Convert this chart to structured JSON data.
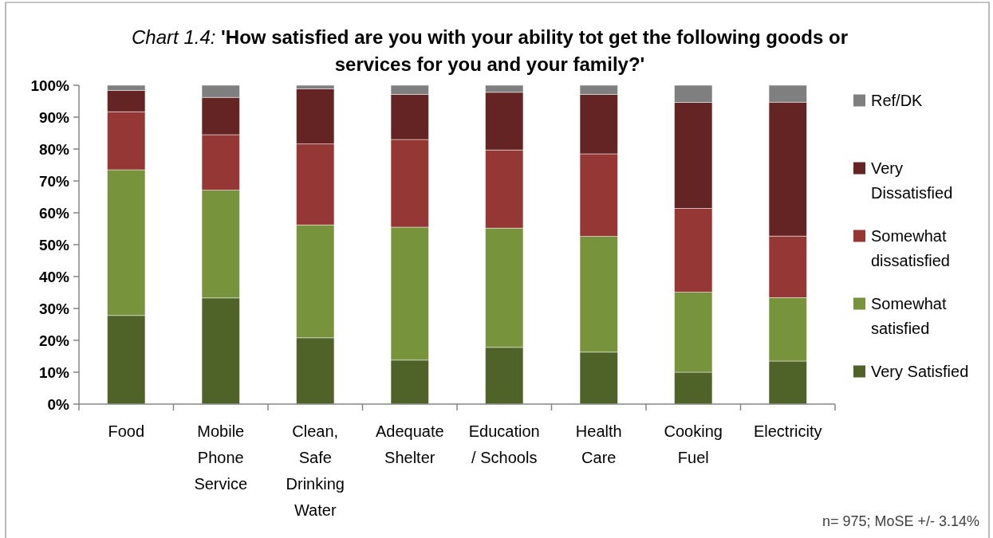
{
  "chart_data": {
    "type": "bar",
    "stacked": true,
    "title": "Chart 1.4: 'How satisfied are you with your ability tot get the following goods or services for you and your family?'",
    "categories": [
      "Food",
      "Mobile Phone Service",
      "Clean, Safe Drinking Water",
      "Adequate Shelter",
      "Education / Schools",
      "Health Care",
      "Cooking Fuel",
      "Electricity"
    ],
    "series": [
      {
        "name": "Very Satisfied",
        "color": "#4f6228",
        "values": [
          27.8,
          33.3,
          20.8,
          13.8,
          17.8,
          16.3,
          10.0,
          13.5
        ]
      },
      {
        "name": "Somewhat satisfied",
        "color": "#77933c",
        "values": [
          45.7,
          33.8,
          35.4,
          41.7,
          37.4,
          36.3,
          25.1,
          19.9
        ]
      },
      {
        "name": "Somewhat dissatisfied",
        "color": "#953735",
        "values": [
          18.2,
          17.4,
          25.4,
          27.5,
          24.5,
          25.9,
          26.3,
          19.3
        ]
      },
      {
        "name": "Very Dissatisfied",
        "color": "#632423",
        "values": [
          6.7,
          11.7,
          17.3,
          14.1,
          18.1,
          18.6,
          33.2,
          42.0
        ]
      },
      {
        "name": "Ref/DK",
        "color": "#7f7f7f",
        "values": [
          1.6,
          3.8,
          1.1,
          2.9,
          2.2,
          2.9,
          5.4,
          5.3
        ]
      }
    ],
    "ylim": [
      0,
      100
    ],
    "yticks": [
      {
        "value": 0,
        "label": "0%"
      },
      {
        "value": 10,
        "label": "10%"
      },
      {
        "value": 20,
        "label": "20%"
      },
      {
        "value": 30,
        "label": "30%"
      },
      {
        "value": 40,
        "label": "40%"
      },
      {
        "value": 50,
        "label": "50%"
      },
      {
        "value": 60,
        "label": "60%"
      },
      {
        "value": 70,
        "label": "70%"
      },
      {
        "value": 80,
        "label": "80%"
      },
      {
        "value": 90,
        "label": "90%"
      },
      {
        "value": 100,
        "label": "100%"
      }
    ],
    "legend": "right",
    "annotations": [
      "n= 975; MoSE +/- 3.14%"
    ]
  }
}
